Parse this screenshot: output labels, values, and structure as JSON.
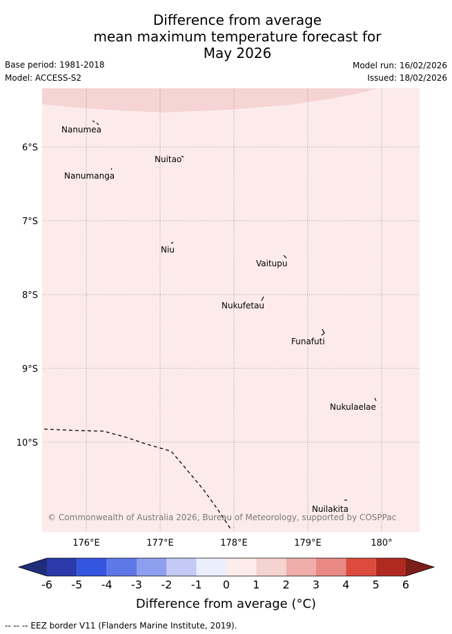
{
  "title": {
    "line1": "Difference from average",
    "line2": "mean maximum temperature forecast for",
    "line3": "May 2026"
  },
  "meta": {
    "base_period": "Base period: 1981-2018",
    "model": "Model: ACCESS-S2",
    "model_run": "Model run: 16/02/2026",
    "issued": "Issued: 18/02/2026"
  },
  "map": {
    "lat_labels": [
      "6°S",
      "7°S",
      "8°S",
      "9°S",
      "10°S"
    ],
    "lat_values": [
      -6,
      -7,
      -8,
      -9,
      -10
    ],
    "lon_labels": [
      "176°E",
      "177°E",
      "178°E",
      "179°E",
      "180°"
    ],
    "lon_values": [
      176,
      177,
      178,
      179,
      180
    ],
    "places": [
      {
        "name": "Nanumea"
      },
      {
        "name": "Nuitao"
      },
      {
        "name": "Nanumanga"
      },
      {
        "name": "Niu"
      },
      {
        "name": "Vaitupu"
      },
      {
        "name": "Nukufetau"
      },
      {
        "name": "Funafuti"
      },
      {
        "name": "Nukulaelae"
      },
      {
        "name": "Nuilakita"
      }
    ],
    "copyright": "© Commonwealth of Australia 2026, Bureau of Meteorology, supported by COSPPac",
    "background_anomaly_class": "0 to 1",
    "upper_region_anomaly_class": "1 to 2"
  },
  "colorbar": {
    "ticks": [
      "-6",
      "-5",
      "-4",
      "-3",
      "-2",
      "-1",
      "0",
      "1",
      "2",
      "3",
      "4",
      "5",
      "6"
    ],
    "colors": [
      "#2a3aa8",
      "#3355e0",
      "#5f78e8",
      "#8c9eee",
      "#c3caf5",
      "#ebeefc",
      "#fdece9",
      "#f5d3d1",
      "#efaeaa",
      "#e88a83",
      "#dc4b3e",
      "#b02a22"
    ],
    "under_color": "#1f2d7a",
    "over_color": "#7a1e1a",
    "label": "Difference from average (°C)"
  },
  "footer": "-- -- -- EEZ border V11 (Flanders Marine Institute, 2019)."
}
